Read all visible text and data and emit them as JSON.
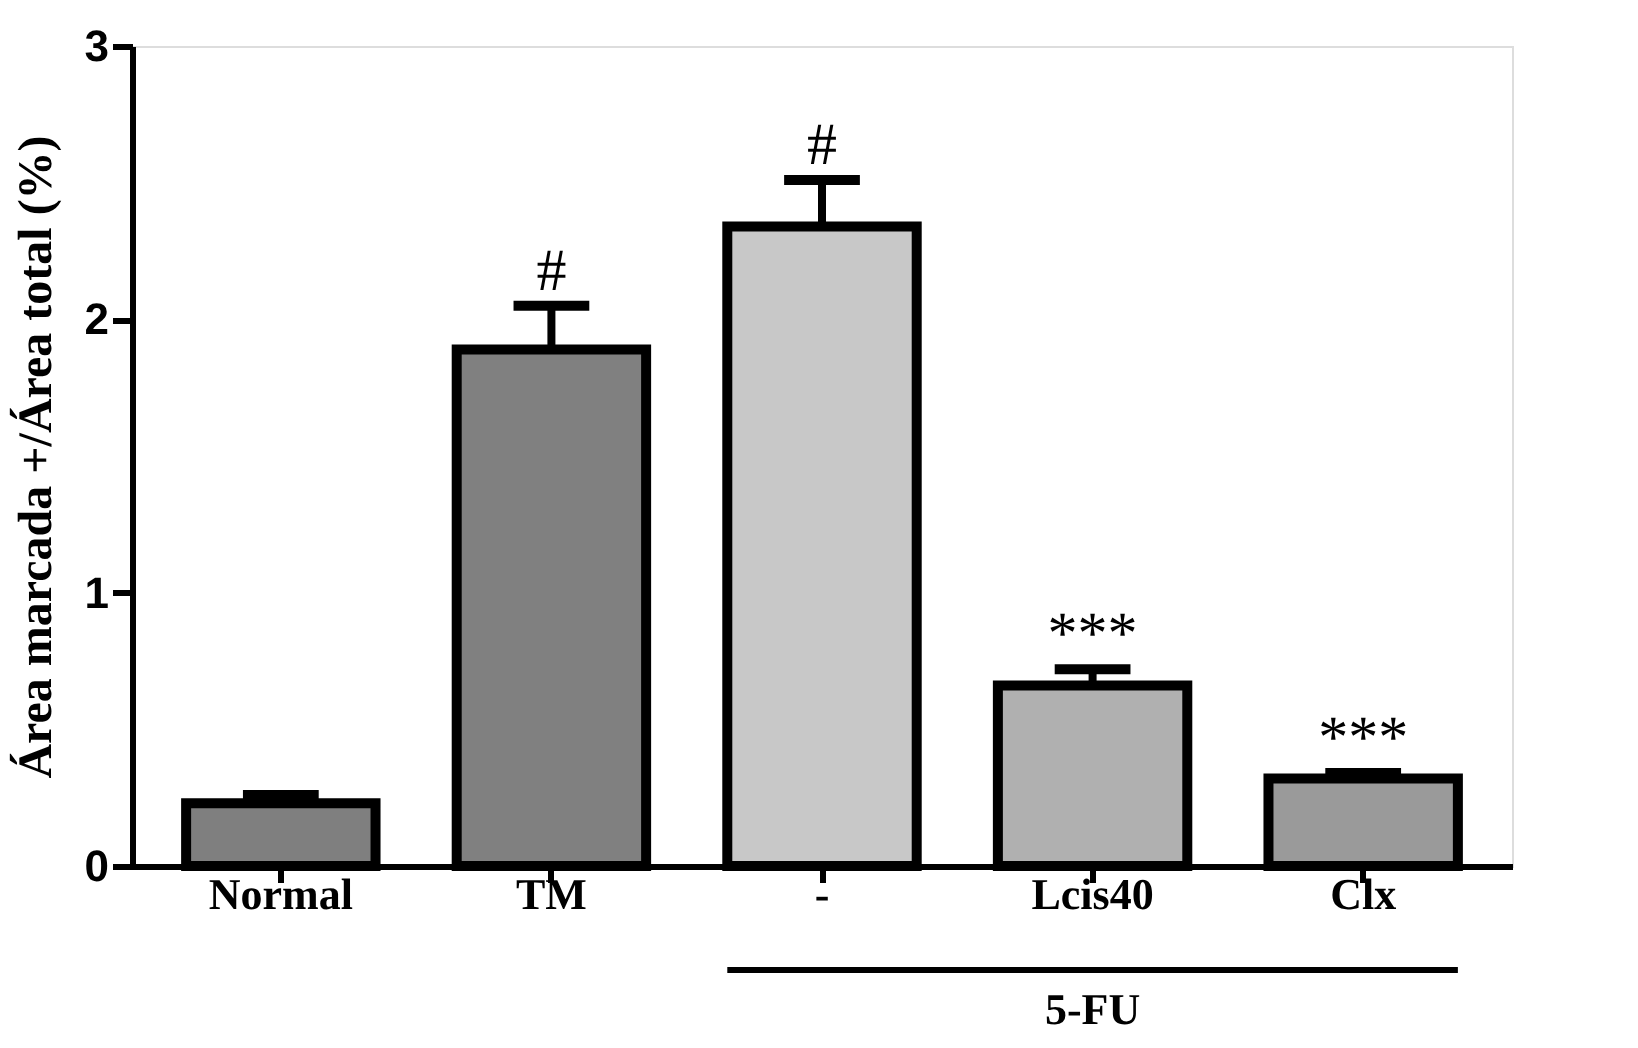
{
  "chart_data": {
    "type": "bar",
    "ylabel": "Área marcada +/Área total (%)",
    "categories": [
      "Normal",
      "TM",
      "-",
      "Lcis40",
      "Clx"
    ],
    "values": [
      0.23,
      1.89,
      2.34,
      0.66,
      0.32
    ],
    "errors": [
      [
        0.23,
        0.26
      ],
      [
        1.89,
        2.05
      ],
      [
        2.34,
        2.51
      ],
      [
        0.66,
        0.72
      ],
      [
        0.32,
        0.34
      ]
    ],
    "colors": [
      "#7f7f7f",
      "#808080",
      "#c8c8c8",
      "#b0b0b0",
      "#9a9a9a"
    ],
    "ylim": [
      0,
      3
    ],
    "yticks": [
      0,
      1,
      2,
      3
    ],
    "grid": false,
    "legend": false,
    "annotations": [
      "#",
      "#",
      "***",
      "***",
      "5-FU"
    ]
  }
}
